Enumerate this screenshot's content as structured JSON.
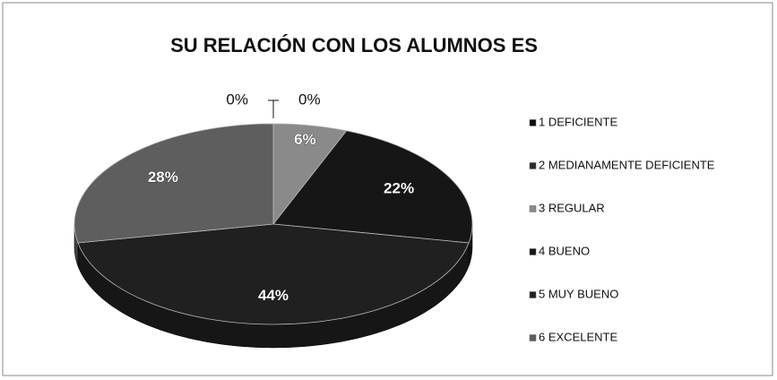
{
  "chart_data": {
    "type": "pie",
    "title": "SU RELACIÓN CON LOS ALUMNOS ES",
    "categories": [
      "1 DEFICIENTE",
      "2 MEDIANAMENTE DEFICIENTE",
      "3 REGULAR",
      "4 BUENO",
      "5 MUY BUENO",
      "6 EXCELENTE"
    ],
    "values": [
      0,
      0,
      6,
      22,
      44,
      28
    ],
    "value_labels": [
      "0%",
      "0%",
      "6%",
      "22%",
      "44%",
      "28%"
    ],
    "colors": [
      "#0d0d0d",
      "#2a2a2a",
      "#8a8a8a",
      "#161616",
      "#202020",
      "#5e5e5e"
    ],
    "legend": "right"
  }
}
